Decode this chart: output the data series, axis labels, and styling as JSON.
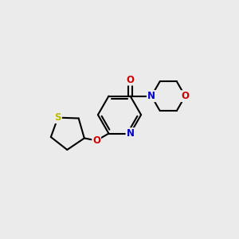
{
  "background_color": "#ebebeb",
  "atom_colors": {
    "C": "#000000",
    "N": "#0000cc",
    "O": "#cc0000",
    "S": "#bbbb00"
  },
  "bond_color": "#000000",
  "bond_width": 1.5,
  "font_size": 8.5
}
